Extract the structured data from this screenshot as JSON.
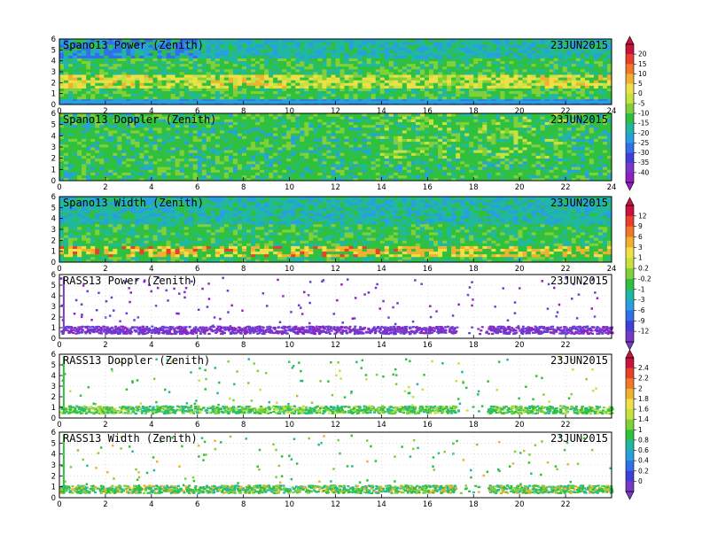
{
  "figure_date": "23JUN2015",
  "chart_data": [
    {
      "type": "heatmap",
      "title": "Spano13 Power (Zenith)",
      "date": "23JUN2015",
      "xlabel": "",
      "ylabel": "",
      "xlim": [
        0,
        24
      ],
      "ylim": [
        0,
        6
      ],
      "x_ticks": [
        0,
        2,
        4,
        6,
        8,
        10,
        12,
        14,
        16,
        18,
        20,
        22,
        24
      ],
      "y_ticks": [
        0,
        1,
        2,
        3,
        4,
        5,
        6
      ],
      "colorbar": {
        "ticks": [
          20,
          15,
          10,
          5,
          0,
          -5,
          -10,
          -15,
          -20,
          -25,
          -30,
          -35,
          -40
        ],
        "colors": [
          "#c8143c",
          "#e8402a",
          "#f07828",
          "#f0b030",
          "#f0e048",
          "#c8e040",
          "#80d038",
          "#30c040",
          "#20b8a0",
          "#28a0e0",
          "#3070e8",
          "#4040d8",
          "#7838c8",
          "#9020c0"
        ]
      },
      "layers": [
        {
          "name": "surface",
          "ymin": 0,
          "ymax": 0.4,
          "value": -30
        },
        {
          "name": "low",
          "ymin": 0.4,
          "ymax": 1.4,
          "value": -5
        },
        {
          "name": "enhanced_band",
          "ymin": 1.4,
          "ymax": 2.8,
          "value": 5
        },
        {
          "name": "middle",
          "ymin": 2.8,
          "ymax": 4.2,
          "value": -12
        },
        {
          "name": "upper",
          "ymin": 4.2,
          "ymax": 6,
          "value": -22
        }
      ]
    },
    {
      "type": "heatmap",
      "title": "Spano13 Doppler (Zenith)",
      "date": "23JUN2015",
      "xlabel": "",
      "ylabel": "",
      "xlim": [
        0,
        24
      ],
      "ylim": [
        0,
        6
      ],
      "x_ticks": [
        0,
        2,
        4,
        6,
        8,
        10,
        12,
        14,
        16,
        18,
        20,
        22,
        24
      ],
      "y_ticks": [
        0,
        1,
        2,
        3,
        4,
        5,
        6
      ],
      "dominant_value": 0,
      "layers": [
        {
          "name": "full_column",
          "ymin": 0,
          "ymax": 6,
          "value": 0
        }
      ]
    },
    {
      "type": "heatmap",
      "title": "Spano13 Width (Zenith)",
      "date": "23JUN2015",
      "xlabel": "",
      "ylabel": "",
      "xlim": [
        0,
        24
      ],
      "ylim": [
        0,
        6
      ],
      "x_ticks": [
        0,
        2,
        4,
        6,
        8,
        10,
        12,
        14,
        16,
        18,
        20,
        22,
        24
      ],
      "y_ticks": [
        0,
        1,
        2,
        3,
        4,
        5,
        6
      ],
      "colorbar": {
        "ticks": [
          12,
          9,
          6,
          3,
          1,
          0.2,
          -0.2,
          -1,
          -3,
          -6,
          -9,
          -12
        ],
        "colors": [
          "#c8143c",
          "#e8402a",
          "#f07828",
          "#f0b030",
          "#f0e048",
          "#c8e040",
          "#80d038",
          "#30c040",
          "#20b8a0",
          "#28a0e0",
          "#3070e8",
          "#4040d8",
          "#7838c8"
        ]
      },
      "layers": [
        {
          "name": "low_wide",
          "ymin": 0.4,
          "ymax": 1.4,
          "value": 3
        },
        {
          "name": "middle",
          "ymin": 1.4,
          "ymax": 3.5,
          "value": 0
        },
        {
          "name": "upper",
          "ymin": 3.5,
          "ymax": 6,
          "value": -1
        }
      ]
    },
    {
      "type": "scatter",
      "title": "RASS13 Power (Zenith)",
      "date": "23JUN2015",
      "xlabel": "",
      "ylabel": "",
      "xlim": [
        0,
        24
      ],
      "ylim": [
        0,
        6
      ],
      "x_ticks": [
        0,
        2,
        4,
        6,
        8,
        10,
        12,
        14,
        16,
        18,
        20,
        22
      ],
      "y_ticks": [
        0,
        1,
        2,
        3,
        4,
        5,
        6
      ],
      "main_band": {
        "ymin": 0.5,
        "ymax": 1.2,
        "value": -12
      }
    },
    {
      "type": "scatter",
      "title": "RASS13 Doppler (Zenith)",
      "date": "23JUN2015",
      "xlabel": "",
      "ylabel": "",
      "xlim": [
        0,
        24
      ],
      "ylim": [
        0,
        6
      ],
      "x_ticks": [
        0,
        2,
        4,
        6,
        8,
        10,
        12,
        14,
        16,
        18,
        20,
        22
      ],
      "y_ticks": [
        0,
        1,
        2,
        3,
        4,
        5,
        6
      ],
      "colorbar": {
        "ticks": [
          2.4,
          2.2,
          2,
          1.8,
          1.6,
          1.4,
          1,
          0.8,
          0.6,
          0.4,
          0.2,
          0
        ],
        "colors": [
          "#c8143c",
          "#e8402a",
          "#f07828",
          "#f0b030",
          "#f0e048",
          "#c8e040",
          "#80d038",
          "#30c040",
          "#20b8a0",
          "#28a0e0",
          "#3070e8",
          "#4040d8",
          "#7838c8"
        ]
      },
      "main_band": {
        "ymin": 0.5,
        "ymax": 1.2,
        "value": 1
      }
    },
    {
      "type": "scatter",
      "title": "RASS13 Width (Zenith)",
      "date": "23JUN2015",
      "xlabel": "",
      "ylabel": "",
      "xlim": [
        0,
        24
      ],
      "ylim": [
        0,
        6
      ],
      "x_ticks": [
        0,
        2,
        4,
        6,
        8,
        10,
        12,
        14,
        16,
        18,
        20,
        22
      ],
      "y_ticks": [
        0,
        1,
        2,
        3,
        4,
        5,
        6
      ],
      "main_band": {
        "ymin": 0.5,
        "ymax": 1.2,
        "value": 1
      }
    }
  ]
}
